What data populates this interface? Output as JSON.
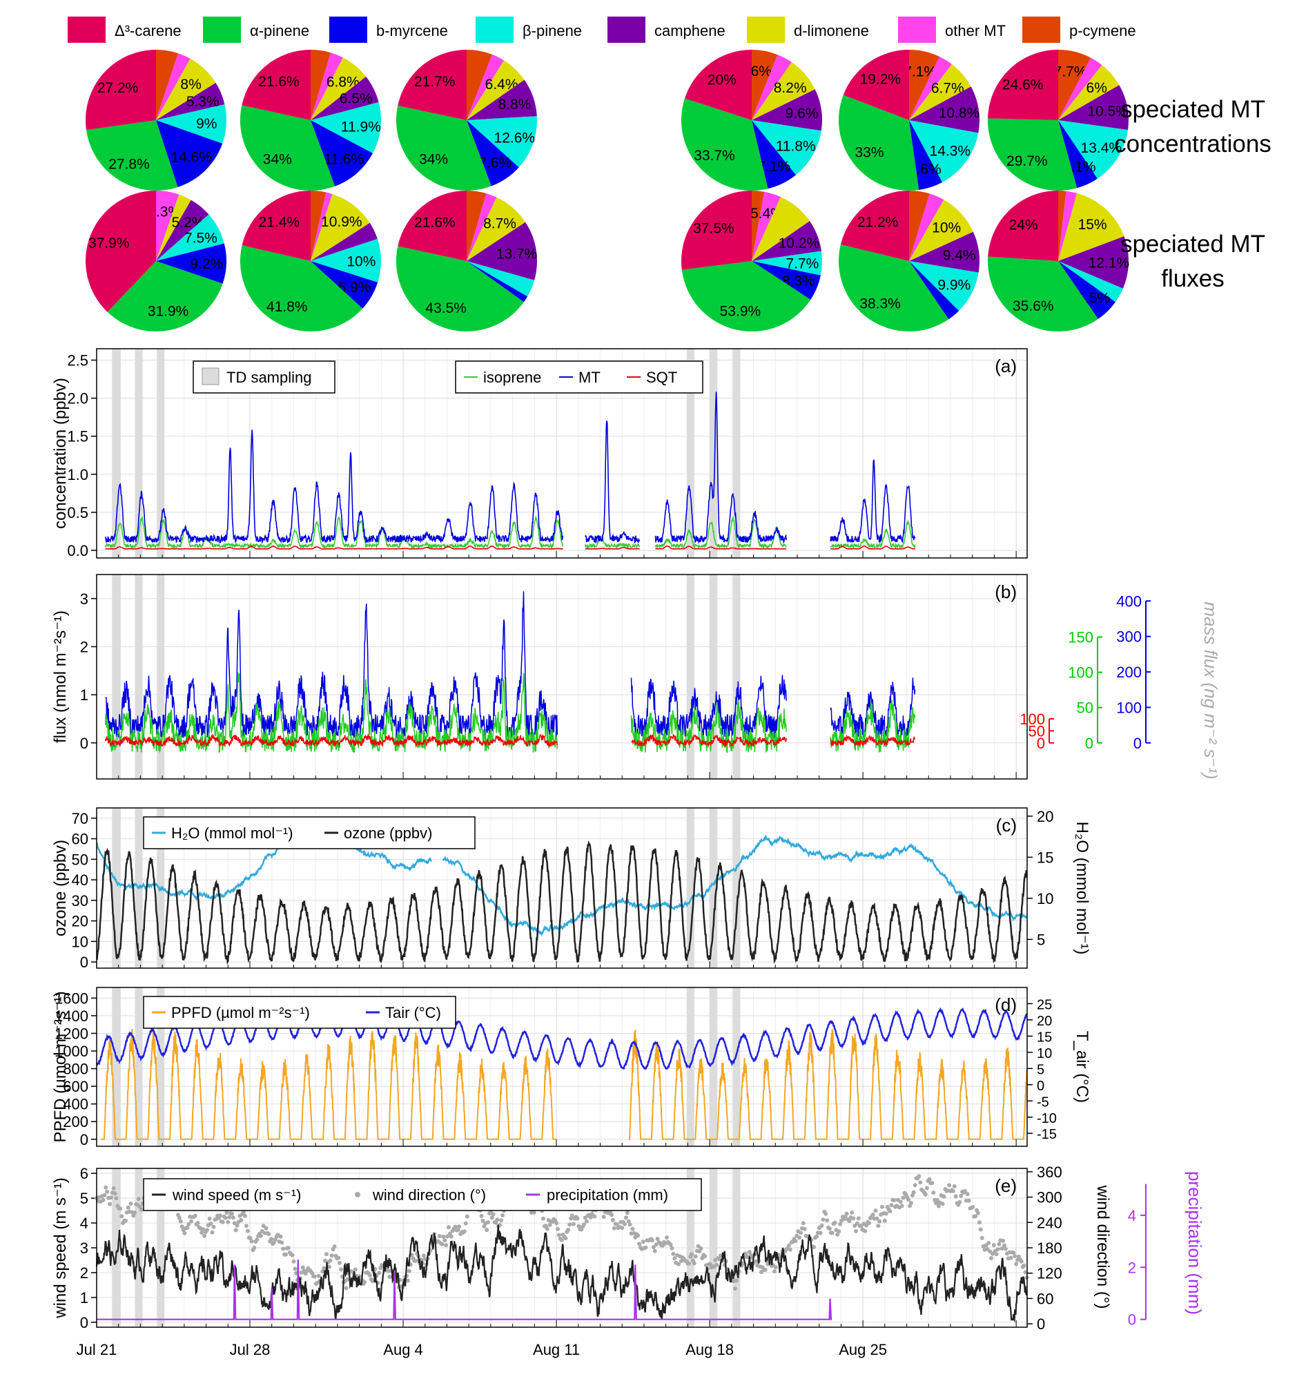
{
  "chart_data": {
    "pies": {
      "legend": [
        {
          "label": "Δ³-carene",
          "color": "#e0005a"
        },
        {
          "label": "α-pinene",
          "color": "#00cc3a"
        },
        {
          "label": "b-myrcene",
          "color": "#0000ee"
        },
        {
          "label": "β-pinene",
          "color": "#00eedd"
        },
        {
          "label": "camphene",
          "color": "#7a00aa"
        },
        {
          "label": "d-limonene",
          "color": "#dddd00"
        },
        {
          "label": "other MT",
          "color": "#ff44ee"
        },
        {
          "label": "p-cymene",
          "color": "#e04400"
        }
      ],
      "row_labels": [
        [
          "speciated MT",
          "concentrations"
        ],
        [
          "speciated MT",
          "fluxes"
        ]
      ],
      "rows": [
        [
          {
            "values": [
              27.2,
              27.8,
              14.6,
              9,
              5.3,
              8,
              3,
              5.1
            ],
            "labels": [
              "27.2%",
              "27.8%",
              "14.6%",
              "9%",
              "5.3%",
              "8%",
              "",
              ""
            ]
          },
          {
            "values": [
              21.6,
              34,
              11.6,
              11.9,
              6.5,
              6.8,
              3,
              4.6
            ],
            "labels": [
              "21.6%",
              "34%",
              "11.6%",
              "11.9%",
              "6.5%",
              "6.8%",
              "",
              ""
            ]
          },
          {
            "values": [
              21.7,
              34,
              7.6,
              12.6,
              8.8,
              6.4,
              3,
              5.9
            ],
            "labels": [
              "21.7%",
              "34%",
              "7.6%",
              "12.6%",
              "8.8%",
              "6.4%",
              "",
              ""
            ]
          },
          {
            "values": [
              20,
              33.7,
              7.1,
              11.8,
              9.6,
              8.2,
              3.6,
              6
            ],
            "labels": [
              "20%",
              "33.7%",
              "7.1%",
              "11.8%",
              "9.6%",
              "8.2%",
              "",
              "6%"
            ]
          },
          {
            "values": [
              19.2,
              33,
              5.6,
              14.3,
              10.8,
              6.7,
              3.3,
              7.1
            ],
            "labels": [
              "19.2%",
              "33%",
              "5.6%",
              "14.3%",
              "10.8%",
              "6.7%",
              "",
              "7.1%"
            ]
          },
          {
            "values": [
              24.6,
              29.7,
              5.1,
              13.4,
              10.5,
              6,
              3,
              7.7
            ],
            "labels": [
              "24.6%",
              "29.7%",
              "5.1%",
              "13.4%",
              "10.5%",
              "6%",
              "",
              "7.7%"
            ]
          }
        ],
        [
          {
            "values": [
              37.9,
              31.9,
              9.2,
              7.5,
              5.2,
              3,
              5.3,
              0
            ],
            "labels": [
              "37.9%",
              "31.9%",
              "9.2%",
              "7.5%",
              "5.2%",
              "",
              "5.3%",
              ""
            ]
          },
          {
            "values": [
              21.4,
              41.8,
              6.9,
              10,
              4,
              10.9,
              1.5,
              3.5
            ],
            "labels": [
              "21.4%",
              "41.8%",
              "6.9%",
              "10%",
              "",
              "10.9%",
              "",
              ""
            ]
          },
          {
            "values": [
              21.6,
              43.5,
              1.5,
              4,
              13.7,
              8.7,
              2.5,
              4.5
            ],
            "labels": [
              "21.6%",
              "43.5%",
              "",
              "",
              "13.7%",
              "8.7%",
              "",
              ""
            ]
          },
          {
            "values": [
              37.5,
              53.9,
              8.3,
              7.7,
              10.2,
              12,
              5.4,
              4
            ],
            "labels": [
              "37.5%",
              "53.9%",
              "8.3%",
              "7.7%",
              "10.2%",
              "",
              "5.4%",
              ""
            ]
          },
          {
            "values": [
              21.2,
              38.3,
              3,
              9.9,
              9.4,
              10,
              3.5,
              4.7
            ],
            "labels": [
              "21.2%",
              "38.3%",
              "",
              "9.9%",
              "9.4%",
              "10%",
              "",
              ""
            ]
          },
          {
            "values": [
              24,
              35.6,
              5.5,
              3.5,
              12.1,
              15,
              2.5,
              1.8
            ],
            "labels": [
              "24%",
              "35.6%",
              "5.5%",
              "",
              "12.1%",
              "15%",
              "",
              ""
            ]
          }
        ]
      ]
    },
    "time_axis": {
      "start": "Jul 21",
      "end_day": 42.5,
      "ticks": [
        {
          "day": 0,
          "label": "Jul 21"
        },
        {
          "day": 7,
          "label": "Jul 28"
        },
        {
          "day": 14,
          "label": "Aug 4"
        },
        {
          "day": 21,
          "label": "Aug 11"
        },
        {
          "day": 28,
          "label": "Aug 18"
        },
        {
          "day": 35,
          "label": "Aug 25"
        }
      ],
      "td_sampling_days": [
        [
          0.7,
          1.1
        ],
        [
          1.75,
          2.1
        ],
        [
          2.75,
          3.1
        ],
        [
          26.95,
          27.3
        ],
        [
          28.0,
          28.35
        ],
        [
          29.05,
          29.4
        ]
      ]
    },
    "panel_a": {
      "type": "line",
      "label": "(a)",
      "ylabel": "concentration (ppbv)",
      "ylim": [
        -0.1,
        2.65
      ],
      "yticks": [
        "0.0",
        "0.5",
        "1.0",
        "1.5",
        "2.0",
        "2.5"
      ],
      "legend_box": "TD sampling",
      "series": [
        {
          "name": "isoprene",
          "color": "#33cc33",
          "base": 0.06,
          "amp": 0.3
        },
        {
          "name": "MT",
          "color": "#0000dd",
          "base": 0.15,
          "amp": 0.6
        },
        {
          "name": "SQT",
          "color": "#ee0000",
          "base": 0.02,
          "amp": 0.03
        }
      ],
      "gaps": [
        [
          21.3,
          22.3
        ],
        [
          24.8,
          25.5
        ],
        [
          31.5,
          33.5
        ],
        [
          37.4,
          42.5
        ]
      ],
      "peaks": [
        {
          "day": 6.1,
          "value": 1.55
        },
        {
          "day": 7.1,
          "value": 1.6
        },
        {
          "day": 11.6,
          "value": 1.5
        },
        {
          "day": 23.3,
          "value": 2.1
        },
        {
          "day": 28.3,
          "value": 2.52
        },
        {
          "day": 35.5,
          "value": 1.4
        }
      ]
    },
    "panel_b": {
      "type": "line",
      "label": "(b)",
      "ylabel": "flux (nmol m⁻²s⁻¹)",
      "ylim": [
        -0.75,
        3.5
      ],
      "yticks": [
        "0",
        "1",
        "2",
        "3"
      ],
      "right_axes": [
        {
          "color": "#ff0000",
          "ticks": [
            "0",
            "50",
            "100"
          ]
        },
        {
          "color": "#00cc00",
          "ticks": [
            "0",
            "50",
            "100",
            "150"
          ]
        },
        {
          "color": "#0000dd",
          "ticks": [
            "0",
            "100",
            "200",
            "300",
            "400"
          ]
        }
      ],
      "right_label": "mass flux (ng m⁻² s⁻¹)",
      "gaps": [
        [
          21.05,
          24.4
        ],
        [
          31.5,
          33.5
        ],
        [
          37.4,
          42.5
        ]
      ],
      "peaks": [
        {
          "day": 6.0,
          "value": 2.7
        },
        {
          "day": 6.5,
          "value": 3.3
        },
        {
          "day": 12.3,
          "value": 2.4
        },
        {
          "day": 18.6,
          "value": 3.1
        },
        {
          "day": 19.5,
          "value": 3.2
        }
      ]
    },
    "panel_c": {
      "type": "line",
      "label": "(c)",
      "ylabel": "ozone (ppbv)",
      "ylim": [
        -3,
        75
      ],
      "yticks": [
        "0",
        "10",
        "20",
        "30",
        "40",
        "50",
        "60",
        "70"
      ],
      "right_label": "H₂O (mmol mol⁻¹)",
      "right_ticks": [
        "5",
        "10",
        "15",
        "20"
      ],
      "series": [
        {
          "name": "H₂O (mmol mol⁻¹)",
          "color": "#33aadd"
        },
        {
          "name": "ozone (ppbv)",
          "color": "#222222"
        }
      ]
    },
    "panel_d": {
      "type": "line",
      "label": "(d)",
      "ylabel": "PPFD (µmol m⁻²s⁻¹)",
      "ylim": [
        -80,
        1720
      ],
      "yticks": [
        "0",
        "200",
        "400",
        "600",
        "800",
        "1000",
        "1200",
        "1400",
        "1600"
      ],
      "right_label": "T_air (°C)",
      "right_ticks": [
        "-15",
        "-10",
        "-5",
        "0",
        "5",
        "10",
        "15",
        "20",
        "25"
      ],
      "series": [
        {
          "name": "PPFD (µmol m⁻²s⁻¹)",
          "color": "#f5a623"
        },
        {
          "name": "Tair (°C)",
          "color": "#2222dd"
        }
      ],
      "ppfd_gap": [
        21.0,
        24.3
      ]
    },
    "panel_e": {
      "type": "line",
      "label": "(e)",
      "ylabel": "wind speed (m s⁻¹)",
      "ylim": [
        -0.2,
        6.2
      ],
      "yticks": [
        "0",
        "1",
        "2",
        "3",
        "4",
        "5",
        "6"
      ],
      "right_label": "wind direction (°)",
      "right_ticks": [
        "0",
        "60",
        "120",
        "180",
        "240",
        "300",
        "360"
      ],
      "far_right_label": "precipitation (mm)",
      "far_right_ticks": [
        "0",
        "2",
        "4"
      ],
      "series": [
        {
          "name": "wind speed (m s⁻¹)",
          "color": "#222222"
        },
        {
          "name": "wind direction (°)",
          "color": "#aaaaaa"
        },
        {
          "name": "precipitation (mm)",
          "color": "#a933ee"
        }
      ],
      "precip_events": [
        {
          "day": 6.3,
          "value": 2.1
        },
        {
          "day": 8.0,
          "value": 1.2
        },
        {
          "day": 9.2,
          "value": 2.3
        },
        {
          "day": 13.6,
          "value": 1.8
        },
        {
          "day": 24.6,
          "value": 2.1
        },
        {
          "day": 33.5,
          "value": 0.8
        }
      ]
    }
  }
}
